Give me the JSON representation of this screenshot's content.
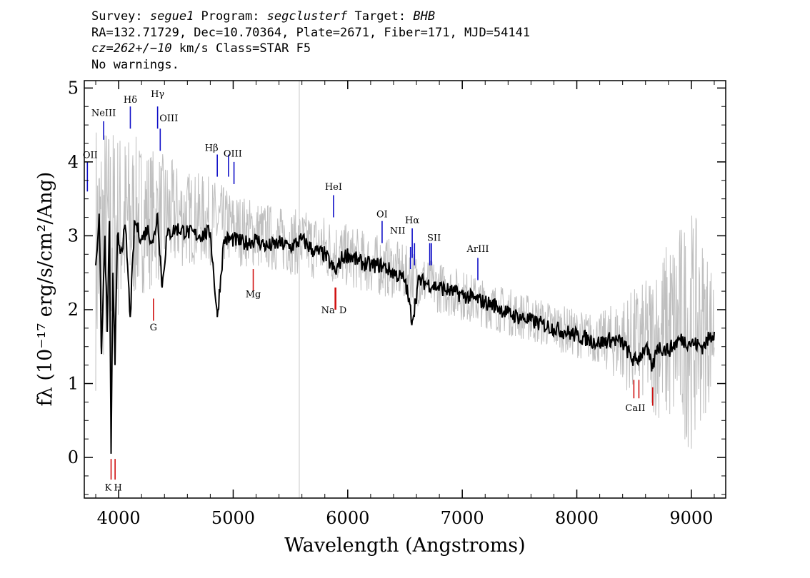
{
  "header": {
    "line1": {
      "survey_label": "Survey: ",
      "survey": "segue1",
      "program_label": " Program: ",
      "program": "segclusterf",
      "target_label": " Target: ",
      "target": "BHB"
    },
    "line2": "RA=132.71729, Dec=10.70364, Plate=2671, Fiber=171, MJD=54141",
    "line3": {
      "cz": "cz=262+/−10",
      "rest": " km/s Class=STAR F5"
    },
    "line4": "No warnings."
  },
  "chart_data": {
    "type": "line",
    "xlabel": "Wavelength (Angstroms)",
    "ylabel": "fλ (10⁻¹⁷ erg/s/cm²/Ang)",
    "xlim": [
      3700,
      9300
    ],
    "ylim": [
      -0.55,
      5.1
    ],
    "xticks": [
      "4000",
      "5000",
      "6000",
      "7000",
      "8000",
      "9000"
    ],
    "yticks": [
      "0",
      "1",
      "2",
      "3",
      "4",
      "5"
    ],
    "vertical_marker": 5577,
    "colors": {
      "flux": "#000000",
      "error": "#bfbfbf",
      "emission": "#1010c8",
      "absorption": "#d01010"
    },
    "series": [
      {
        "role": "smoothed_flux",
        "x": [
          3800,
          3830,
          3850,
          3880,
          3900,
          3920,
          3934,
          3950,
          3968,
          3990,
          4020,
          4060,
          4101,
          4140,
          4200,
          4250,
          4300,
          4340,
          4380,
          4420,
          4500,
          4600,
          4700,
          4800,
          4861,
          4920,
          5000,
          5100,
          5200,
          5300,
          5400,
          5500,
          5600,
          5700,
          5800,
          5893,
          5950,
          6000,
          6100,
          6200,
          6300,
          6400,
          6500,
          6563,
          6620,
          6700,
          6800,
          6900,
          7000,
          7100,
          7200,
          7300,
          7400,
          7500,
          7600,
          7700,
          7800,
          7900,
          8000,
          8100,
          8200,
          8300,
          8400,
          8498,
          8542,
          8600,
          8662,
          8700,
          8800,
          8900,
          9000,
          9100,
          9200
        ],
        "y": [
          2.6,
          3.3,
          1.4,
          3.0,
          1.7,
          3.2,
          0.05,
          2.5,
          1.25,
          3.0,
          2.8,
          3.1,
          1.9,
          3.2,
          2.95,
          3.1,
          2.9,
          3.3,
          2.3,
          3.0,
          3.1,
          3.05,
          3.0,
          3.05,
          1.9,
          2.95,
          2.95,
          2.9,
          2.95,
          2.85,
          2.9,
          2.85,
          2.95,
          2.8,
          2.75,
          2.5,
          2.7,
          2.75,
          2.65,
          2.6,
          2.6,
          2.5,
          2.4,
          1.85,
          2.4,
          2.35,
          2.3,
          2.25,
          2.2,
          2.15,
          2.1,
          2.05,
          1.95,
          1.9,
          1.85,
          1.8,
          1.75,
          1.7,
          1.65,
          1.6,
          1.55,
          1.6,
          1.55,
          1.3,
          1.35,
          1.5,
          1.2,
          1.5,
          1.45,
          1.6,
          1.55,
          1.5,
          1.7
        ]
      },
      {
        "role": "noise_envelope",
        "x": [
          3800,
          4000,
          4200,
          4400,
          4600,
          4800,
          5000,
          5200,
          5400,
          5600,
          5800,
          6000,
          6200,
          6400,
          6600,
          6800,
          7000,
          7200,
          7400,
          7600,
          7800,
          8000,
          8200,
          8400,
          8600,
          8800,
          9000,
          9200
        ],
        "upper": [
          4.7,
          4.5,
          4.3,
          4.1,
          3.9,
          3.8,
          3.6,
          3.5,
          3.4,
          3.35,
          3.3,
          3.15,
          3.05,
          2.95,
          2.8,
          2.65,
          2.55,
          2.4,
          2.3,
          2.2,
          2.1,
          2.0,
          1.95,
          2.2,
          2.4,
          3.0,
          3.4,
          2.6
        ],
        "lower": [
          0.9,
          1.8,
          2.2,
          2.4,
          2.6,
          2.6,
          2.6,
          2.55,
          2.5,
          2.45,
          2.35,
          2.3,
          2.2,
          2.15,
          2.05,
          1.95,
          1.85,
          1.75,
          1.65,
          1.55,
          1.45,
          1.35,
          1.25,
          0.95,
          0.7,
          0.35,
          0.1,
          0.9
        ]
      }
    ],
    "emission_lines": [
      {
        "label": "OII",
        "x": 3727,
        "y0": 3.6,
        "y1": 4.0,
        "label_y": 4.05
      },
      {
        "label": "NeIII",
        "x": 3869,
        "y0": 4.3,
        "y1": 4.55,
        "label_y": 4.62
      },
      {
        "label": "Hδ",
        "x": 4102,
        "y0": 4.45,
        "y1": 4.75,
        "label_y": 4.8
      },
      {
        "label": "Hγ",
        "x": 4340,
        "y0": 4.45,
        "y1": 4.75,
        "label_y": 4.88
      },
      {
        "label": "OIII",
        "x": 4363,
        "y0": 4.15,
        "y1": 4.45,
        "label_y": 4.55
      },
      {
        "label": "Hβ",
        "x": 4861,
        "y0": 3.8,
        "y1": 4.1,
        "label_y": 4.15
      },
      {
        "label": "OIII",
        "x": 4959,
        "y0": 3.8,
        "y1": 4.1,
        "label_y": 4.07
      },
      {
        "label": "OIII",
        "x": 5007,
        "y0": 3.7,
        "y1": 4.0,
        "label_y": 4.07
      },
      {
        "label": "HeI",
        "x": 5876,
        "y0": 3.25,
        "y1": 3.55,
        "label_y": 3.62
      },
      {
        "label": "OI",
        "x": 6300,
        "y0": 2.9,
        "y1": 3.2,
        "label_y": 3.25
      },
      {
        "label": "NII",
        "x": 6548,
        "y0": 2.55,
        "y1": 2.85,
        "label_y": 3.03
      },
      {
        "label": "Hα",
        "x": 6563,
        "y0": 2.7,
        "y1": 3.1,
        "label_y": 3.17
      },
      {
        "label": "NII",
        "x": 6583,
        "y0": 2.6,
        "y1": 2.9,
        "label_y": 3.03
      },
      {
        "label": "SII",
        "x": 6716,
        "y0": 2.6,
        "y1": 2.9,
        "label_y": 2.93
      },
      {
        "label": "SII",
        "x": 6731,
        "y0": 2.6,
        "y1": 2.9,
        "label_y": 2.93
      },
      {
        "label": "ArIII",
        "x": 7136,
        "y0": 2.4,
        "y1": 2.7,
        "label_y": 2.78
      }
    ],
    "absorption_lines": [
      {
        "label": "K",
        "x": 3934,
        "y0": -0.3,
        "y1": -0.02,
        "label_y": -0.45
      },
      {
        "label": "H",
        "x": 3969,
        "y0": -0.3,
        "y1": -0.02,
        "label_y": -0.45
      },
      {
        "label": "G",
        "x": 4304,
        "y0": 1.85,
        "y1": 2.15,
        "label_y": 1.72
      },
      {
        "label": "Mg",
        "x": 5175,
        "y0": 2.25,
        "y1": 2.55,
        "label_y": 2.17
      },
      {
        "label": "Na",
        "x": 5890,
        "y0": 2.0,
        "y1": 2.3,
        "label_y": 1.95
      },
      {
        "label": "D",
        "x": 5896,
        "y0": 2.0,
        "y1": 2.3,
        "label_y": 1.95
      },
      {
        "label": "CaII",
        "x": 8498,
        "y0": 0.8,
        "y1": 1.05,
        "label_y": 0.63
      },
      {
        "label": "CaII",
        "x": 8542,
        "y0": 0.8,
        "y1": 1.05,
        "label_y": 0.63
      },
      {
        "label": "CaII",
        "x": 8662,
        "y0": 0.7,
        "y1": 0.95,
        "label_y": 0.63
      }
    ]
  }
}
